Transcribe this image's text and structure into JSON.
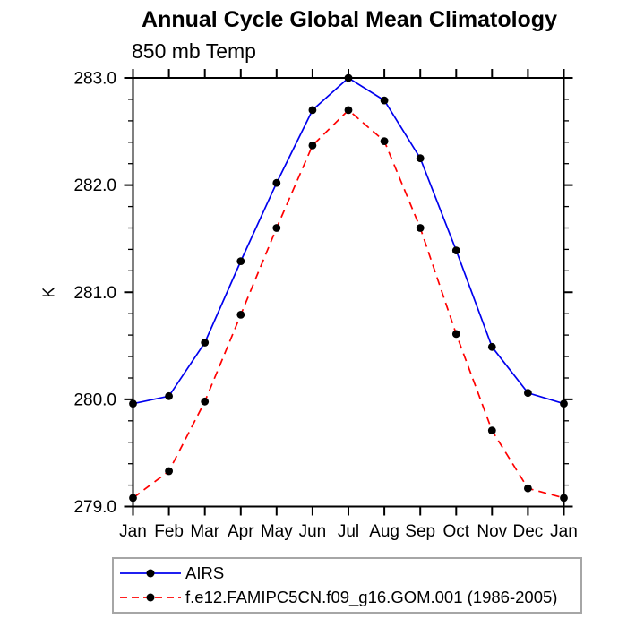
{
  "title": "Annual Cycle Global Mean Climatology",
  "subtitle": "850 mb Temp",
  "chart_data": {
    "type": "line",
    "title": "Annual Cycle Global Mean Climatology",
    "subtitle": "850 mb Temp",
    "ylabel": "K",
    "xlabel": "",
    "categories": [
      "Jan",
      "Feb",
      "Mar",
      "Apr",
      "May",
      "Jun",
      "Jul",
      "Aug",
      "Sep",
      "Oct",
      "Nov",
      "Dec",
      "Jan"
    ],
    "series": [
      {
        "name": "AIRS",
        "color": "#0000ee",
        "style": "solid",
        "marker": "circle",
        "marker_color": "#000000",
        "values": [
          279.96,
          280.03,
          280.53,
          281.29,
          282.02,
          282.7,
          283.0,
          282.79,
          282.25,
          281.39,
          280.49,
          280.06,
          279.96
        ]
      },
      {
        "name": "f.e12.FAMIPC5CN.f09_g16.GOM.001 (1986-2005)",
        "color": "#ff0000",
        "style": "dashed",
        "marker": "circle",
        "marker_color": "#000000",
        "values": [
          279.08,
          279.33,
          279.98,
          280.79,
          281.6,
          282.37,
          282.7,
          282.41,
          281.6,
          280.61,
          279.71,
          279.17,
          279.08
        ]
      }
    ],
    "ylim": [
      279.0,
      283.0
    ],
    "ytick_major_step": 1.0,
    "ytick_minor_step": 0.2,
    "ytick_label_format_decimals": 1,
    "grid": false,
    "legend_position": "bottom-left",
    "axis_color": "#000000",
    "legend_border_color": "#a6a6a6"
  }
}
